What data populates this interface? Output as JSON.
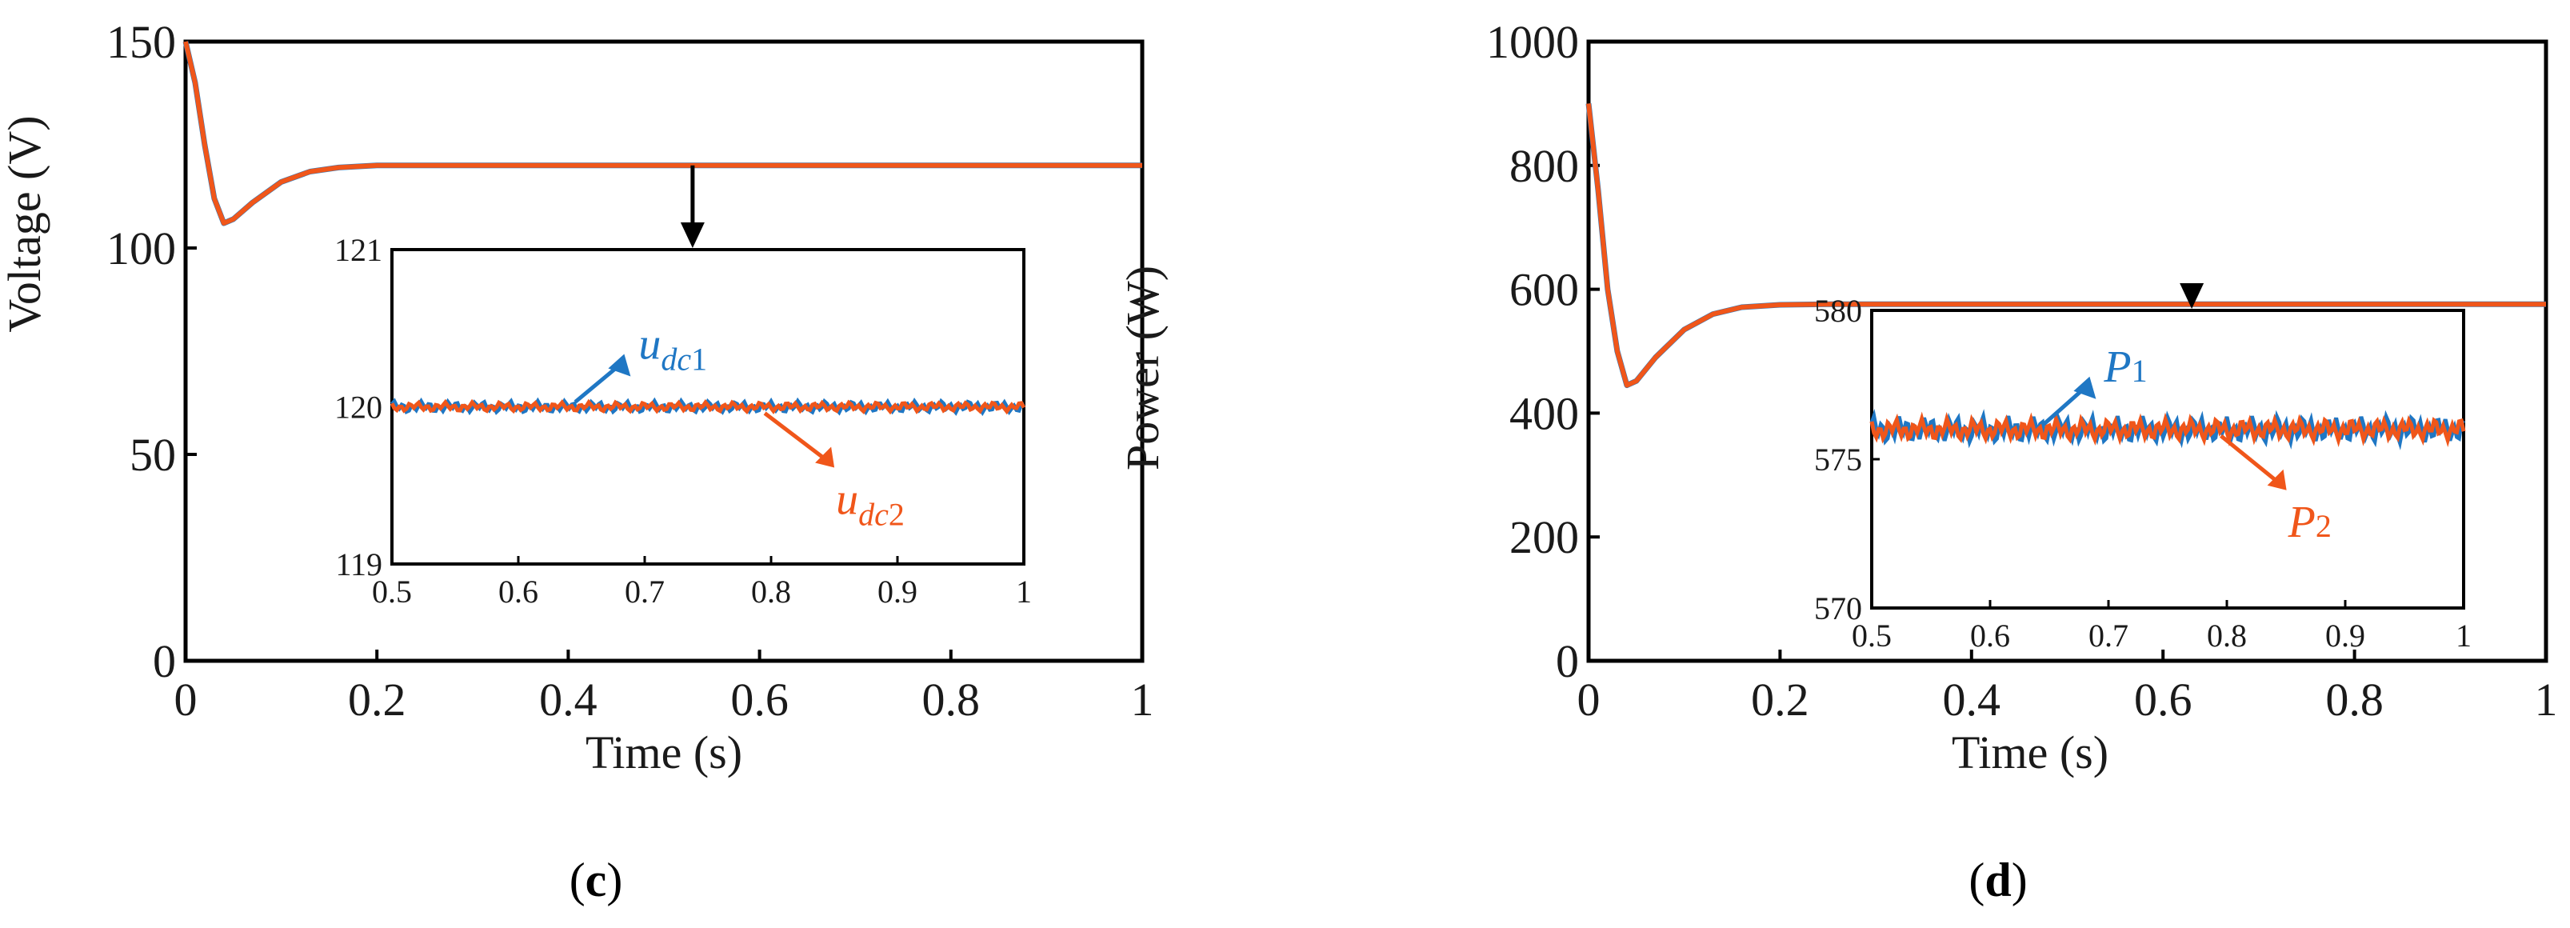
{
  "colors": {
    "series1": "#1f77c4",
    "series2": "#f0561a",
    "axis": "#000000"
  },
  "panels": [
    {
      "label_open": "(",
      "label_letter": "c",
      "label_close": ")"
    },
    {
      "label_open": "(",
      "label_letter": "d",
      "label_close": ")"
    }
  ],
  "chart_data": [
    {
      "type": "line",
      "xlabel": "Time (s)",
      "ylabel": "Voltage (V)",
      "xlim": [
        0,
        1
      ],
      "ylim": [
        0,
        150
      ],
      "xticks": [
        "0",
        "0.2",
        "0.4",
        "0.6",
        "0.8",
        "1"
      ],
      "yticks": [
        "0",
        "50",
        "100",
        "150"
      ],
      "series": [
        {
          "name_main": "u",
          "name_sub": "dc",
          "name_index": "1",
          "color": "#1f77c4",
          "x": [
            0,
            0.01,
            0.02,
            0.03,
            0.04,
            0.05,
            0.07,
            0.1,
            0.13,
            0.16,
            0.2,
            0.25,
            0.3,
            1.0
          ],
          "y": [
            150,
            140,
            125,
            112,
            106,
            107,
            111,
            116,
            118.5,
            119.5,
            120,
            120,
            120,
            120
          ]
        },
        {
          "name_main": "u",
          "name_sub": "dc",
          "name_index": "2",
          "color": "#f0561a",
          "x": [
            0,
            0.01,
            0.02,
            0.03,
            0.04,
            0.05,
            0.07,
            0.1,
            0.13,
            0.16,
            0.2,
            0.25,
            0.3,
            1.0
          ],
          "y": [
            150,
            140,
            125,
            112,
            106,
            107,
            111,
            116,
            118.5,
            119.5,
            120,
            120,
            120,
            120
          ]
        }
      ],
      "arrow_x": 0.53,
      "inset": {
        "xlim": [
          0.5,
          1
        ],
        "ylim": [
          119,
          121
        ],
        "xticks": [
          "0.5",
          "0.6",
          "0.7",
          "0.8",
          "0.9",
          "1"
        ],
        "yticks": [
          "119",
          "120",
          "121"
        ],
        "steady": 120,
        "ripple": 0.03
      }
    },
    {
      "type": "line",
      "xlabel": "Time (s)",
      "ylabel": "Power (W)",
      "xlim": [
        0,
        1
      ],
      "ylim": [
        0,
        1000
      ],
      "xticks": [
        "0",
        "0.2",
        "0.4",
        "0.6",
        "0.8",
        "1"
      ],
      "yticks": [
        "0",
        "200",
        "400",
        "600",
        "800",
        "1000"
      ],
      "series": [
        {
          "name_main": "P",
          "name_sub": "",
          "name_index": "1",
          "color": "#1f77c4",
          "x": [
            0,
            0.01,
            0.02,
            0.03,
            0.04,
            0.05,
            0.07,
            0.1,
            0.13,
            0.16,
            0.2,
            0.25,
            0.3,
            1.0
          ],
          "y": [
            900,
            760,
            600,
            500,
            445,
            452,
            490,
            535,
            560,
            571,
            575,
            576,
            576,
            576
          ]
        },
        {
          "name_main": "P",
          "name_sub": "",
          "name_index": "2",
          "color": "#f0561a",
          "x": [
            0,
            0.01,
            0.02,
            0.03,
            0.04,
            0.05,
            0.07,
            0.1,
            0.13,
            0.16,
            0.2,
            0.25,
            0.3,
            1.0
          ],
          "y": [
            900,
            760,
            600,
            500,
            445,
            452,
            490,
            535,
            560,
            571,
            575,
            576,
            576,
            576
          ]
        }
      ],
      "arrow_x": 0.63,
      "inset": {
        "xlim": [
          0.5,
          1
        ],
        "ylim": [
          570,
          580
        ],
        "xticks": [
          "0.5",
          "0.6",
          "0.7",
          "0.8",
          "0.9",
          "1"
        ],
        "yticks": [
          "570",
          "575",
          "580"
        ],
        "steady": 576,
        "ripple": 0.18
      }
    }
  ]
}
